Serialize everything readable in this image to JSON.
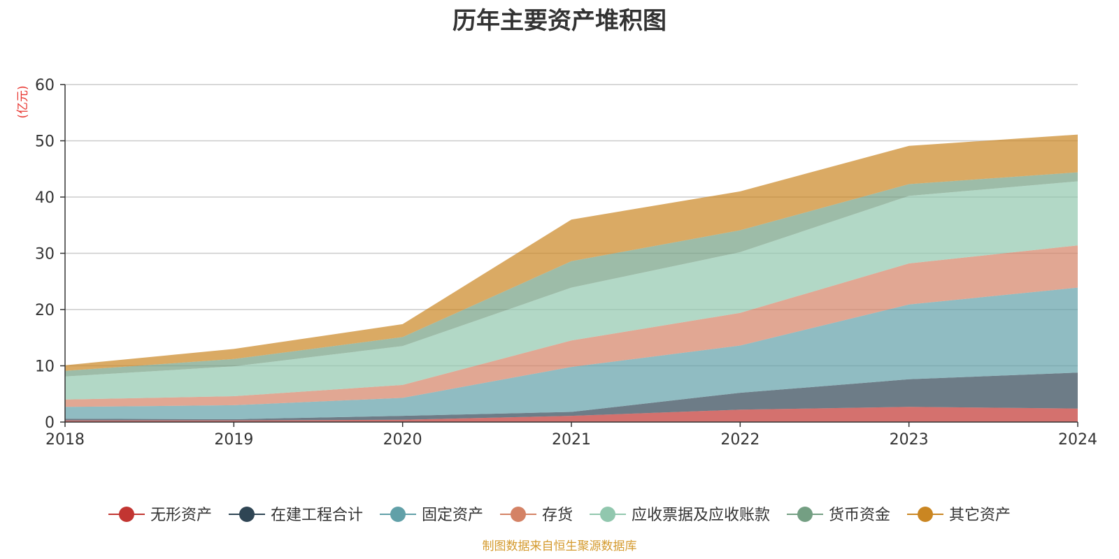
{
  "chart_data": {
    "type": "area",
    "stacked": true,
    "title": "历年主要资产堆积图",
    "ylabel": "(亿元)",
    "xlabel": "",
    "x": [
      "2018",
      "2019",
      "2020",
      "2021",
      "2022",
      "2023",
      "2024"
    ],
    "ylim": [
      0,
      60
    ],
    "yticks": [
      0,
      10,
      20,
      30,
      40,
      50,
      60
    ],
    "grid": true,
    "legend_position": "bottom",
    "source": "制图数据来自恒生聚源数据库",
    "series": [
      {
        "name": "无形资产",
        "color": "#c23531",
        "values": [
          0.3,
          0.3,
          0.4,
          1.1,
          2.2,
          2.7,
          2.4
        ]
      },
      {
        "name": "在建工程合计",
        "color": "#2f4554",
        "values": [
          0.3,
          0.2,
          0.7,
          0.7,
          3.0,
          4.9,
          6.4
        ]
      },
      {
        "name": "固定资产",
        "color": "#61a0a8",
        "values": [
          2.1,
          2.5,
          3.2,
          8.0,
          8.4,
          13.3,
          15.1
        ]
      },
      {
        "name": "存货",
        "color": "#d48265",
        "values": [
          1.3,
          1.6,
          2.3,
          4.7,
          5.8,
          7.3,
          7.5
        ]
      },
      {
        "name": "应收票据及应收账款",
        "color": "#91c7ae",
        "values": [
          4.1,
          5.3,
          6.9,
          9.4,
          10.8,
          12.0,
          11.4
        ]
      },
      {
        "name": "货币资金",
        "color": "#749f83",
        "values": [
          1.0,
          1.3,
          1.6,
          4.7,
          3.9,
          2.1,
          1.6
        ]
      },
      {
        "name": "其它资产",
        "color": "#ca8622",
        "values": [
          1.0,
          1.8,
          2.3,
          7.4,
          6.9,
          6.8,
          6.7
        ]
      }
    ]
  }
}
